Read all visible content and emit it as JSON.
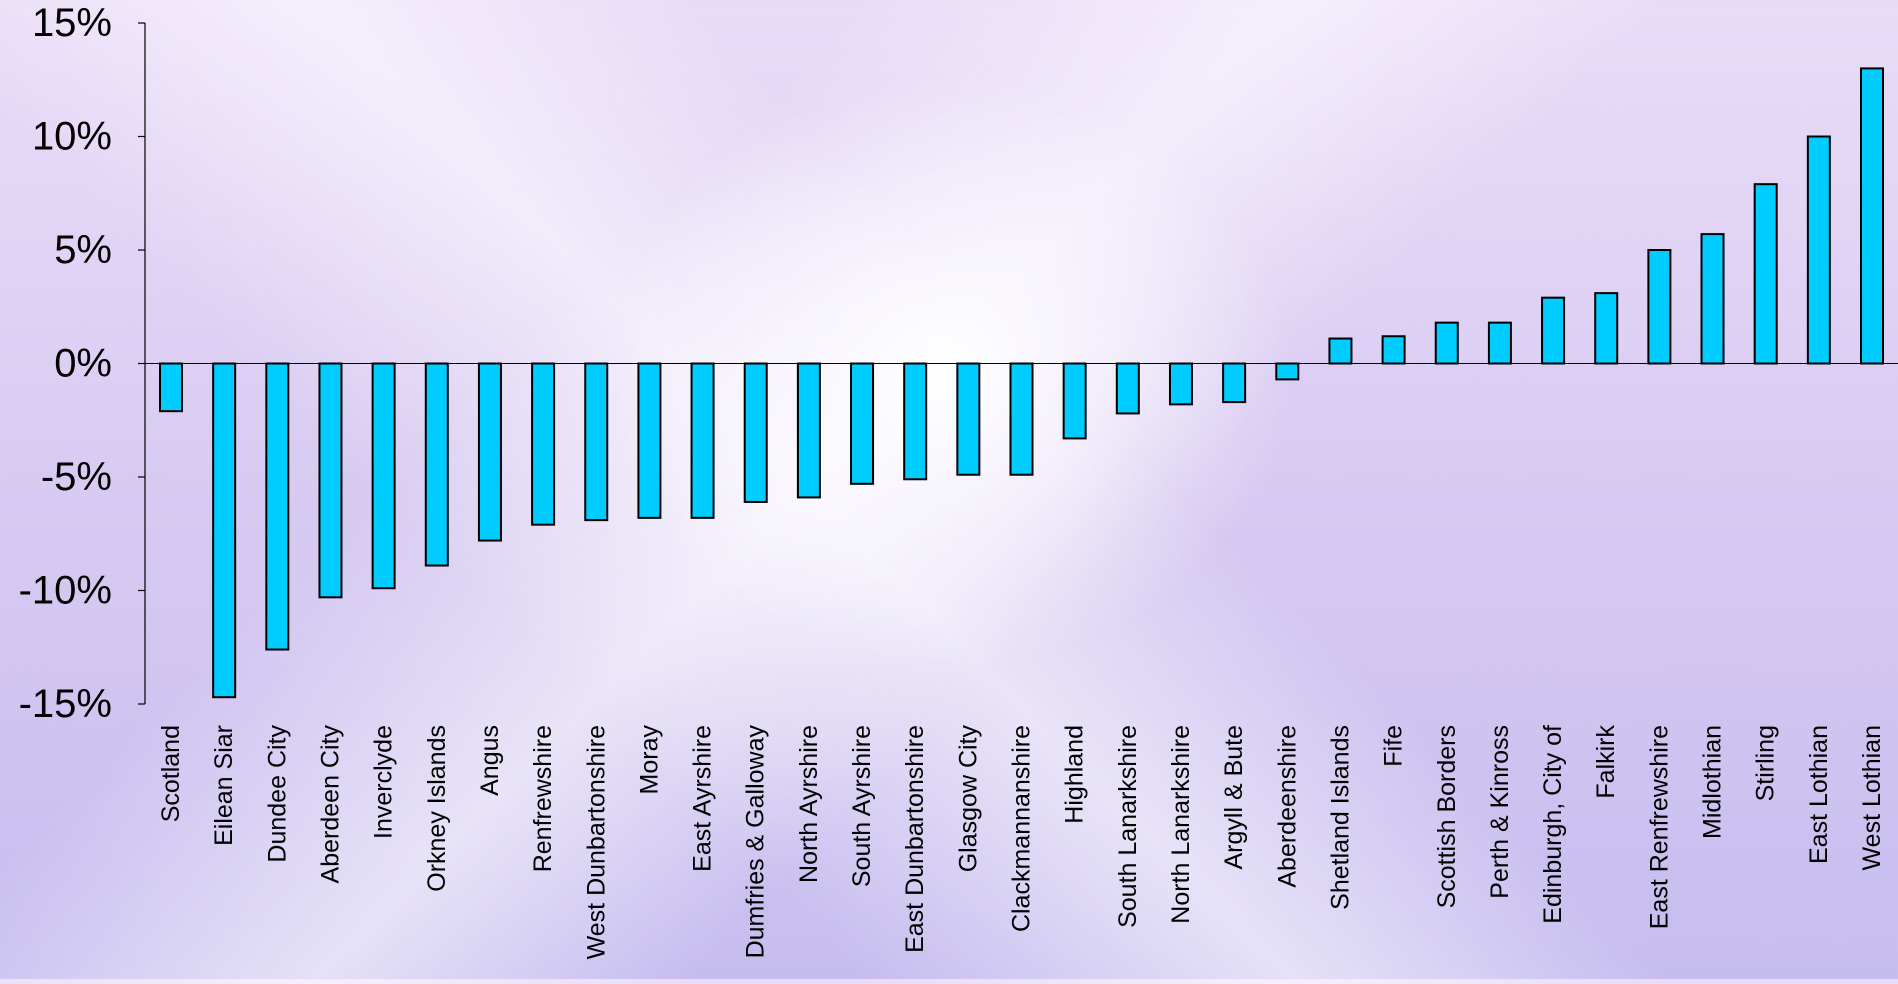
{
  "chart_data": {
    "type": "bar",
    "title": "",
    "xlabel": "",
    "ylabel": "",
    "ylim": [
      -15,
      15
    ],
    "yticks": [
      15,
      10,
      5,
      0,
      -5,
      -10,
      -15
    ],
    "ytick_labels": [
      "15%",
      "10%",
      "5%",
      "0%",
      "-5%",
      "-10%",
      "-15%"
    ],
    "grid": false,
    "bar_color": "#00CCFF",
    "bar_stroke": "#000000",
    "categories": [
      "Scotland",
      "Eilean Siar",
      "Dundee City",
      "Aberdeen City",
      "Inverclyde",
      "Orkney Islands",
      "Angus",
      "Renfrewshire",
      "West Dunbartonshire",
      "Moray",
      "East Ayrshire",
      "Dumfries & Galloway",
      "North Ayrshire",
      "South Ayrshire",
      "East Dunbartonshire",
      "Glasgow City",
      "Clackmannanshire",
      "Highland",
      "South Lanarkshire",
      "North Lanarkshire",
      "Argyll & Bute",
      "Aberdeenshire",
      "Shetland Islands",
      "Fife",
      "Scottish Borders",
      "Perth & Kinross",
      "Edinburgh, City of",
      "Falkirk",
      "East Renfrewshire",
      "Midlothian",
      "Stirling",
      "East Lothian",
      "West Lothian"
    ],
    "values": [
      -2.1,
      -14.7,
      -12.6,
      -10.3,
      -9.9,
      -8.9,
      -7.8,
      -7.1,
      -6.9,
      -6.8,
      -6.8,
      -6.1,
      -5.9,
      -5.3,
      -5.1,
      -4.9,
      -4.9,
      -3.3,
      -2.2,
      -1.8,
      -1.7,
      -0.7,
      1.1,
      1.2,
      1.8,
      1.8,
      2.9,
      3.1,
      5.0,
      5.7,
      7.9,
      10.0,
      13.0
    ]
  }
}
